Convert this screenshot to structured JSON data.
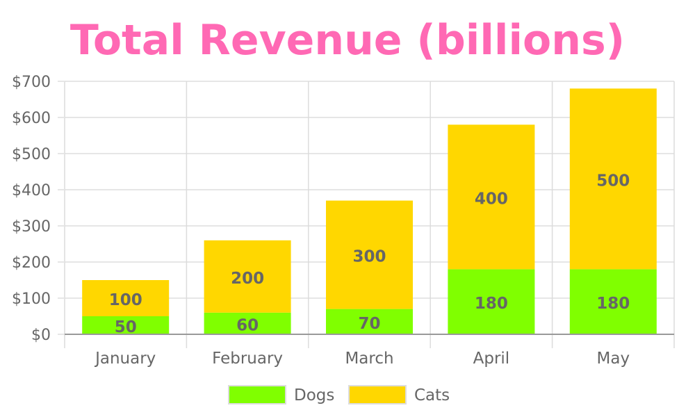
{
  "chart_data": {
    "type": "bar",
    "stacked": true,
    "title": "Total Revenue (billions)",
    "xlabel": "",
    "ylabel": "",
    "categories": [
      "January",
      "February",
      "March",
      "April",
      "May"
    ],
    "series": [
      {
        "name": "Dogs",
        "values": [
          50,
          60,
          70,
          180,
          180
        ],
        "color": "#80ff00"
      },
      {
        "name": "Cats",
        "values": [
          100,
          200,
          300,
          400,
          500
        ],
        "color": "#ffd700"
      }
    ],
    "ylim": [
      0,
      700
    ],
    "yticks": [
      0,
      100,
      200,
      300,
      400,
      500,
      600,
      700
    ],
    "ytick_labels": [
      "$0",
      "$100",
      "$200",
      "$300",
      "$400",
      "$500",
      "$600",
      "$700"
    ],
    "grid": true,
    "legend_position": "bottom",
    "title_color": "#ff69b4",
    "text_color": "#666666"
  }
}
